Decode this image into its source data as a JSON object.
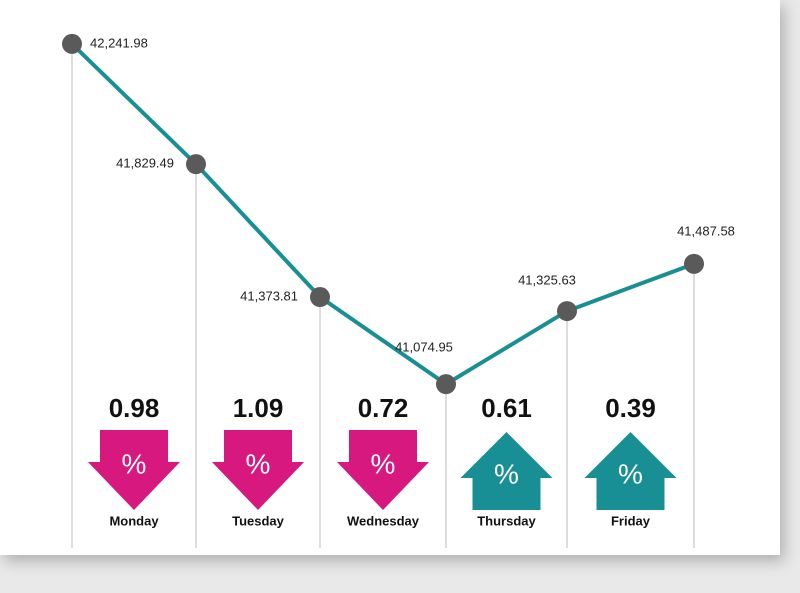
{
  "chart_data": {
    "type": "line",
    "categories": [
      null,
      null,
      null,
      null,
      null,
      null
    ],
    "values": [
      42241.98,
      41829.49,
      41373.81,
      41074.95,
      41325.63,
      41487.58
    ],
    "value_labels": [
      "42,241.98",
      "41,829.49",
      "41,373.81",
      "41,074.95",
      "41,325.63",
      "41,487.58"
    ],
    "color": "#178f95",
    "marker_color": "#5a5a5a",
    "ylim": [
      41000,
      42300
    ],
    "percent_sign": "%",
    "days": [
      {
        "name": "Monday",
        "change": 0.98,
        "direction": "down"
      },
      {
        "name": "Tuesday",
        "change": 1.09,
        "direction": "down"
      },
      {
        "name": "Wednesday",
        "change": 0.72,
        "direction": "down"
      },
      {
        "name": "Thursday",
        "change": 0.61,
        "direction": "up"
      },
      {
        "name": "Friday",
        "change": 0.39,
        "direction": "up"
      }
    ],
    "down_color": "#d6187f",
    "up_color": "#178f95"
  }
}
